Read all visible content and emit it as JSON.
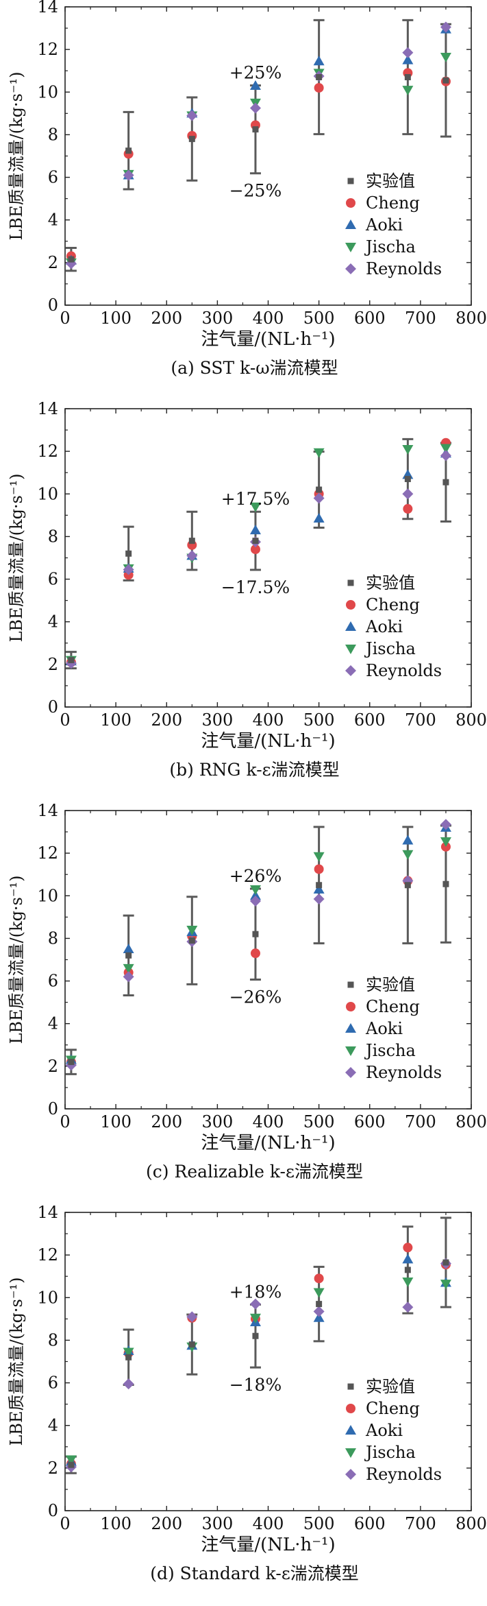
{
  "chart_data": [
    {
      "type": "scatter",
      "caption": "(a) SST k-ω湍流模型",
      "xlabel": "注气量/(NL·h⁻¹)",
      "ylabel": "LBE质量流量/(kg·s⁻¹)",
      "xlim": [
        0,
        800
      ],
      "ylim": [
        0,
        14
      ],
      "x_ticks": [
        "0",
        "100",
        "200",
        "300",
        "400",
        "500",
        "600",
        "700",
        "800"
      ],
      "y_ticks": [
        "0",
        "2",
        "4",
        "6",
        "8",
        "10",
        "12",
        "14"
      ],
      "legend": "center-right",
      "annotations": [
        "+25%",
        "−25%"
      ],
      "error_pct": 25,
      "x": [
        12,
        125,
        250,
        375,
        500,
        675,
        750
      ],
      "series": [
        {
          "name": "实验值",
          "marker": "square",
          "color": "#555555",
          "values": [
            2.15,
            7.25,
            7.8,
            8.25,
            10.7,
            10.7,
            10.55
          ]
        },
        {
          "name": "Cheng",
          "marker": "circle",
          "color": "#e0484a",
          "values": [
            2.3,
            7.1,
            7.95,
            8.45,
            10.2,
            10.9,
            10.5
          ]
        },
        {
          "name": "Aoki",
          "marker": "triangle-up",
          "color": "#2f6bb0",
          "values": [
            2.1,
            6.1,
            9.0,
            10.3,
            11.45,
            11.5,
            12.95
          ]
        },
        {
          "name": "Jischa",
          "marker": "triangle-down",
          "color": "#3c9a5c",
          "values": [
            2.0,
            6.15,
            8.9,
            9.5,
            10.9,
            10.1,
            11.65
          ]
        },
        {
          "name": "Reynolds",
          "marker": "diamond",
          "color": "#8a6db5",
          "values": [
            1.95,
            6.1,
            8.9,
            9.25,
            10.75,
            11.85,
            13.05
          ]
        }
      ]
    },
    {
      "type": "scatter",
      "caption": "(b) RNG k-ε湍流模型",
      "xlabel": "注气量/(NL·h⁻¹)",
      "ylabel": "LBE质量流量/(kg·s⁻¹)",
      "xlim": [
        0,
        800
      ],
      "ylim": [
        0,
        14
      ],
      "x_ticks": [
        "0",
        "100",
        "200",
        "300",
        "400",
        "500",
        "600",
        "700",
        "800"
      ],
      "y_ticks": [
        "0",
        "2",
        "4",
        "6",
        "8",
        "10",
        "12",
        "14"
      ],
      "legend": "center-right",
      "annotations": [
        "+17.5%",
        "−17.5%"
      ],
      "error_pct": 17.5,
      "x": [
        12,
        125,
        250,
        375,
        500,
        675,
        750
      ],
      "series": [
        {
          "name": "实验值",
          "marker": "square",
          "color": "#555555",
          "values": [
            2.2,
            7.2,
            7.8,
            7.8,
            10.2,
            10.7,
            10.55
          ]
        },
        {
          "name": "Cheng",
          "marker": "circle",
          "color": "#e0484a",
          "values": [
            2.1,
            6.2,
            7.6,
            7.4,
            10.0,
            9.3,
            12.4
          ]
        },
        {
          "name": "Aoki",
          "marker": "triangle-up",
          "color": "#2f6bb0",
          "values": [
            2.15,
            6.5,
            7.1,
            8.3,
            8.85,
            10.9,
            11.9
          ]
        },
        {
          "name": "Jischa",
          "marker": "triangle-down",
          "color": "#3c9a5c",
          "values": [
            2.2,
            6.5,
            7.0,
            9.4,
            11.95,
            12.1,
            12.15
          ]
        },
        {
          "name": "Reynolds",
          "marker": "diamond",
          "color": "#8a6db5",
          "values": [
            2.05,
            6.45,
            7.1,
            7.75,
            9.8,
            10.0,
            11.8
          ]
        }
      ]
    },
    {
      "type": "scatter",
      "caption": "(c) Realizable k-ε湍流模型",
      "xlabel": "注气量/(NL·h⁻¹)",
      "ylabel": "LBE质量流量/(kg·s⁻¹)",
      "xlim": [
        0,
        800
      ],
      "ylim": [
        0,
        14
      ],
      "x_ticks": [
        "0",
        "100",
        "200",
        "300",
        "400",
        "500",
        "600",
        "700",
        "800"
      ],
      "y_ticks": [
        "0",
        "2",
        "4",
        "6",
        "8",
        "10",
        "12",
        "14"
      ],
      "legend": "center-right",
      "annotations": [
        "+26%",
        "−26%"
      ],
      "error_pct": 26,
      "x": [
        12,
        125,
        250,
        375,
        500,
        675,
        750
      ],
      "series": [
        {
          "name": "实验值",
          "marker": "square",
          "color": "#555555",
          "values": [
            2.2,
            7.2,
            7.9,
            8.2,
            10.5,
            10.5,
            10.55
          ]
        },
        {
          "name": "Cheng",
          "marker": "circle",
          "color": "#e0484a",
          "values": [
            2.2,
            6.4,
            8.1,
            7.3,
            11.25,
            10.7,
            12.3
          ]
        },
        {
          "name": "Aoki",
          "marker": "triangle-up",
          "color": "#2f6bb0",
          "values": [
            2.3,
            7.5,
            8.3,
            10.0,
            10.3,
            12.6,
            13.2
          ]
        },
        {
          "name": "Jischa",
          "marker": "triangle-down",
          "color": "#3c9a5c",
          "values": [
            2.3,
            6.6,
            8.4,
            10.3,
            11.85,
            11.95,
            12.55
          ]
        },
        {
          "name": "Reynolds",
          "marker": "diamond",
          "color": "#8a6db5",
          "values": [
            2.05,
            6.2,
            7.85,
            9.75,
            9.85,
            10.7,
            13.35
          ]
        }
      ]
    },
    {
      "type": "scatter",
      "caption": "(d) Standard k-ε湍流模型",
      "xlabel": "注气量/(NL·h⁻¹)",
      "ylabel": "LBE质量流量/(kg·s⁻¹)",
      "xlim": [
        0,
        800
      ],
      "ylim": [
        0,
        14
      ],
      "x_ticks": [
        "0",
        "100",
        "200",
        "300",
        "400",
        "500",
        "600",
        "700",
        "800"
      ],
      "y_ticks": [
        "0",
        "2",
        "4",
        "6",
        "8",
        "10",
        "12",
        "14"
      ],
      "legend": "center-right",
      "annotations": [
        "+18%",
        "−18%"
      ],
      "error_pct": 18,
      "x": [
        12,
        125,
        250,
        375,
        500,
        675,
        750
      ],
      "series": [
        {
          "name": "实验值",
          "marker": "square",
          "color": "#555555",
          "values": [
            2.15,
            7.2,
            7.8,
            8.2,
            9.7,
            11.3,
            11.65
          ]
        },
        {
          "name": "Cheng",
          "marker": "circle",
          "color": "#e0484a",
          "values": [
            2.2,
            7.4,
            9.05,
            9.0,
            10.9,
            12.35,
            11.55
          ]
        },
        {
          "name": "Aoki",
          "marker": "triangle-up",
          "color": "#2f6bb0",
          "values": [
            2.3,
            7.5,
            7.75,
            8.85,
            9.05,
            11.8,
            10.7
          ]
        },
        {
          "name": "Jischa",
          "marker": "triangle-down",
          "color": "#3c9a5c",
          "values": [
            2.4,
            7.45,
            7.7,
            9.05,
            10.25,
            10.75,
            10.65
          ]
        },
        {
          "name": "Reynolds",
          "marker": "diamond",
          "color": "#8a6db5",
          "values": [
            2.05,
            5.95,
            9.1,
            9.7,
            9.35,
            9.55,
            11.6
          ]
        }
      ]
    }
  ]
}
